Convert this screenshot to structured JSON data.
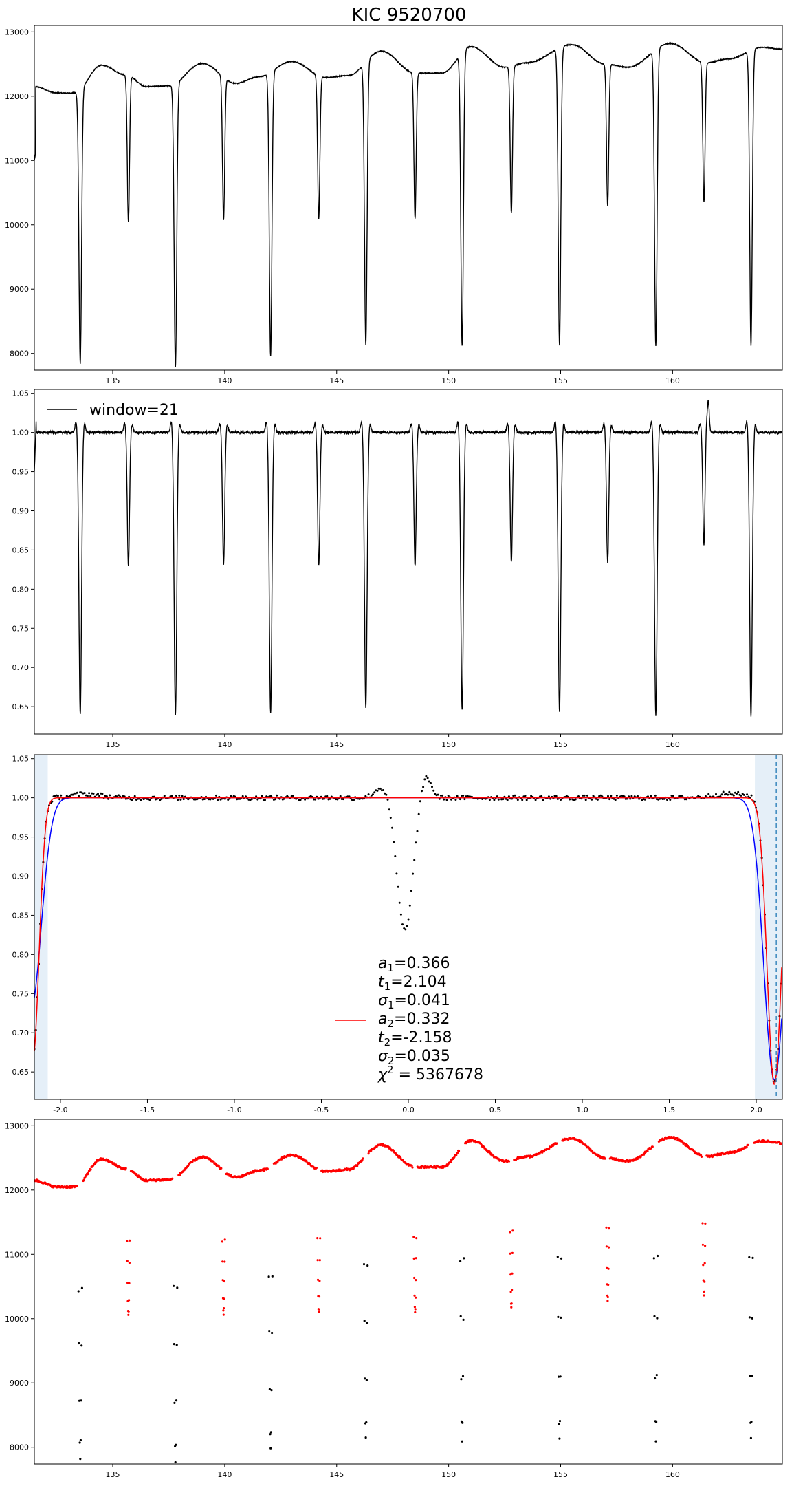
{
  "figure": {
    "title": "KIC 9520700"
  },
  "chart_data": [
    {
      "type": "line",
      "panel": "raw-flux",
      "xlim": [
        131.5,
        164.9
      ],
      "ylim": [
        7740,
        13100
      ],
      "xticks": [
        135,
        140,
        145,
        150,
        155,
        160
      ],
      "yticks": [
        8000,
        9000,
        10000,
        11000,
        12000,
        13000
      ],
      "color": "#000000",
      "baseline": [
        [
          131.5,
          12150
        ],
        [
          132.5,
          12050
        ],
        [
          133.3,
          12050
        ],
        [
          134.5,
          12480
        ],
        [
          135.6,
          12330
        ],
        [
          136.5,
          12150
        ],
        [
          137.5,
          12160
        ],
        [
          139.0,
          12510
        ],
        [
          140.5,
          12200
        ],
        [
          141.5,
          12300
        ],
        [
          143.0,
          12540
        ],
        [
          144.5,
          12290
        ],
        [
          145.5,
          12320
        ],
        [
          147.0,
          12700
        ],
        [
          148.5,
          12360
        ],
        [
          149.7,
          12360
        ],
        [
          151.0,
          12770
        ],
        [
          152.5,
          12450
        ],
        [
          153.5,
          12520
        ],
        [
          155.5,
          12800
        ],
        [
          157.0,
          12500
        ],
        [
          158.0,
          12450
        ],
        [
          159.9,
          12820
        ],
        [
          161.5,
          12520
        ],
        [
          162.5,
          12580
        ],
        [
          164.0,
          12760
        ],
        [
          164.9,
          12730
        ]
      ],
      "primary_eclipses": [
        [
          133.55,
          7840
        ],
        [
          137.8,
          7780
        ],
        [
          142.05,
          7960
        ],
        [
          146.3,
          8130
        ],
        [
          150.6,
          8120
        ],
        [
          154.95,
          8120
        ],
        [
          159.25,
          8120
        ],
        [
          163.5,
          8120
        ]
      ],
      "secondary_eclipses": [
        [
          135.7,
          10040
        ],
        [
          139.95,
          10080
        ],
        [
          144.2,
          10100
        ],
        [
          148.5,
          10100
        ],
        [
          152.8,
          10180
        ],
        [
          157.1,
          10290
        ],
        [
          161.4,
          10350
        ]
      ]
    },
    {
      "type": "line",
      "panel": "detrended-flux",
      "legend": [
        "window=21"
      ],
      "legend_position": "top-left",
      "xlim": [
        131.5,
        164.9
      ],
      "ylim": [
        0.615,
        1.055
      ],
      "xticks": [
        135,
        140,
        145,
        150,
        155,
        160
      ],
      "yticks": [
        0.65,
        0.7,
        0.75,
        0.8,
        0.85,
        0.9,
        0.95,
        1.0,
        1.05
      ],
      "color": "#000000",
      "primary_eclipses": [
        [
          133.55,
          0.64
        ],
        [
          137.8,
          0.638
        ],
        [
          142.05,
          0.642
        ],
        [
          146.3,
          0.648
        ],
        [
          150.6,
          0.645
        ],
        [
          154.95,
          0.643
        ],
        [
          159.25,
          0.639
        ],
        [
          163.5,
          0.637
        ]
      ],
      "secondary_eclipses": [
        [
          135.7,
          0.829
        ],
        [
          139.95,
          0.832
        ],
        [
          144.2,
          0.83
        ],
        [
          148.5,
          0.83
        ],
        [
          152.8,
          0.834
        ],
        [
          157.1,
          0.834
        ],
        [
          161.4,
          0.852
        ]
      ],
      "bump_at": 161.6
    },
    {
      "type": "scatter",
      "panel": "phase-fold",
      "xlim": [
        -2.15,
        2.15
      ],
      "ylim": [
        0.615,
        1.055
      ],
      "xticks": [
        -2.0,
        -1.5,
        -1.0,
        -0.5,
        0.0,
        0.5,
        1.0,
        1.5,
        2.0
      ],
      "yticks": [
        0.65,
        0.7,
        0.75,
        0.8,
        0.85,
        0.9,
        0.95,
        1.0,
        1.05
      ],
      "shaded_ranges": [
        [
          -2.15,
          -2.073
        ],
        [
          1.992,
          2.15
        ]
      ],
      "vline_x": 2.115,
      "secondary_dip": {
        "center": -0.02,
        "depth": 0.17,
        "width": 0.045
      },
      "fit_params": {
        "a1": 0.366,
        "t1": 2.104,
        "s1": 0.041,
        "a2": 0.332,
        "t2": -2.158,
        "s2": 0.035
      },
      "colors": {
        "data": "#000000",
        "fit": "#ff0000",
        "model": "#0000ff",
        "shade": "#c6dbef",
        "vline": "#1f77b4"
      }
    },
    {
      "type": "scatter",
      "panel": "sigma-clipped",
      "xlim": [
        131.5,
        164.9
      ],
      "ylim": [
        7740,
        13100
      ],
      "xticks": [
        135,
        140,
        145,
        150,
        155,
        160
      ],
      "yticks": [
        8000,
        9000,
        10000,
        11000,
        12000,
        13000
      ],
      "colors": {
        "kept": "#ff0000",
        "rejected": "#000000"
      }
    }
  ],
  "legend_panel3": {
    "lines": [
      {
        "label": "a",
        "sub": "1",
        "value": "=0.366"
      },
      {
        "label": "t",
        "sub": "1",
        "value": "=2.104"
      },
      {
        "label": "σ",
        "sub": "1",
        "value": "=0.041"
      },
      {
        "label": "a",
        "sub": "2",
        "value": "=0.332"
      },
      {
        "label": "t",
        "sub": "2",
        "value": "=-2.158"
      },
      {
        "label": "σ",
        "sub": "2",
        "value": "=0.035"
      },
      {
        "label": "χ",
        "sup": "2",
        "value": " = 5367678"
      }
    ]
  }
}
